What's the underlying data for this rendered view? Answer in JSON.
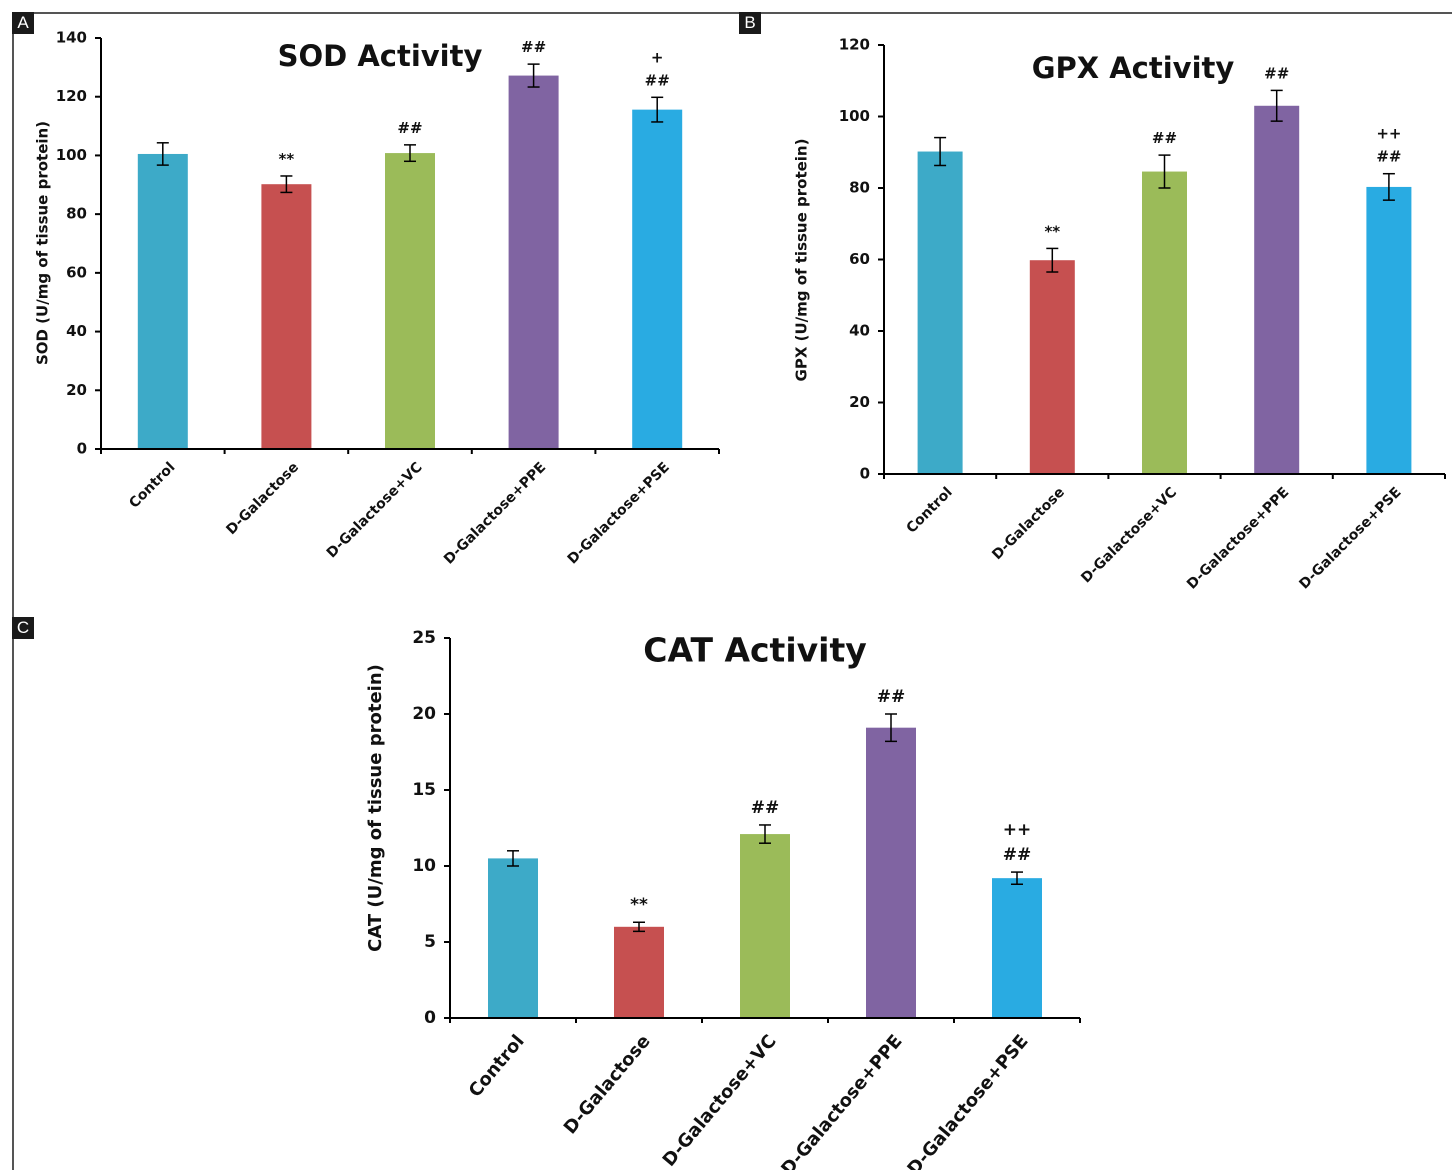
{
  "panels": [
    {
      "tag": "A"
    },
    {
      "tag": "B"
    },
    {
      "tag": "C"
    }
  ],
  "colors": {
    "Control": "#3daac8",
    "D-Galactose": "#c65050",
    "D-Galactose+VC": "#9bbb59",
    "D-Galactose+PPE": "#8064a2",
    "D-Galactose+PSE": "#29abe2",
    "axis": "#000000",
    "text": "#111111"
  },
  "chart_data": [
    {
      "type": "bar",
      "title": "SOD Activity",
      "ylabel": "SOD (U/mg of tissue protein)",
      "xlabel": "",
      "categories": [
        "Control",
        "D-Galactose",
        "D-Galactose+VC",
        "D-Galactose+PPE",
        "D-Galactose+PSE"
      ],
      "values": [
        100.5,
        90.2,
        100.8,
        127.2,
        115.6
      ],
      "errors": [
        3.8,
        2.8,
        2.8,
        3.9,
        4.2
      ],
      "annotations": [
        [],
        [
          "**"
        ],
        [
          "##"
        ],
        [
          "##"
        ],
        [
          "+",
          "##"
        ]
      ],
      "ylim": [
        0,
        140
      ],
      "yticks": [
        0,
        20,
        40,
        60,
        80,
        100,
        120,
        140
      ],
      "grid": false,
      "legend": "none"
    },
    {
      "type": "bar",
      "title": "GPX Activity",
      "ylabel": "GPX (U/mg of tissue protein)",
      "xlabel": "",
      "categories": [
        "Control",
        "D-Galactose",
        "D-Galactose+VC",
        "D-Galactose+PPE",
        "D-Galactose+PSE"
      ],
      "values": [
        90.2,
        59.8,
        84.6,
        103.0,
        80.3
      ],
      "errors": [
        3.9,
        3.3,
        4.6,
        4.3,
        3.7
      ],
      "annotations": [
        [],
        [
          "**"
        ],
        [
          "##"
        ],
        [
          "##"
        ],
        [
          "++",
          "##"
        ]
      ],
      "ylim": [
        0,
        120
      ],
      "yticks": [
        0,
        20,
        40,
        60,
        80,
        100,
        120
      ],
      "grid": false,
      "legend": "none"
    },
    {
      "type": "bar",
      "title": "CAT Activity",
      "ylabel": "CAT (U/mg of tissue protein)",
      "xlabel": "",
      "categories": [
        "Control",
        "D-Galactose",
        "D-Galactose+VC",
        "D-Galactose+PPE",
        "D-Galactose+PSE"
      ],
      "values": [
        10.5,
        6.0,
        12.1,
        19.1,
        9.2
      ],
      "errors": [
        0.5,
        0.3,
        0.6,
        0.9,
        0.4
      ],
      "annotations": [
        [],
        [
          "**"
        ],
        [
          "##"
        ],
        [
          "##"
        ],
        [
          "++",
          "##"
        ]
      ],
      "ylim": [
        0,
        25
      ],
      "yticks": [
        0,
        5,
        10,
        15,
        20,
        25
      ],
      "grid": false,
      "legend": "none"
    }
  ]
}
